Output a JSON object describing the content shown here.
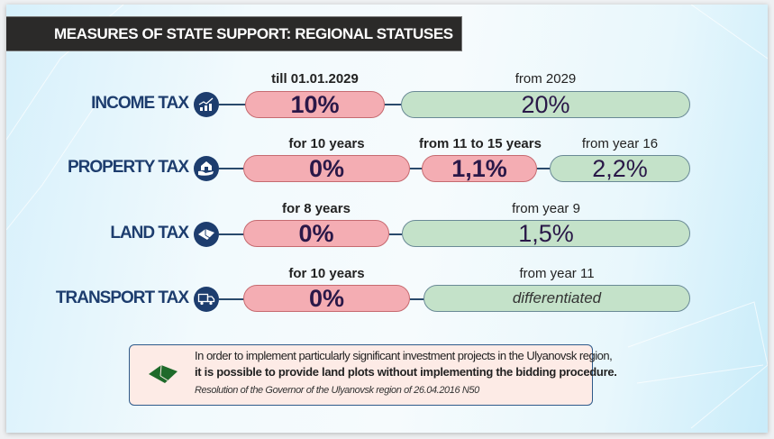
{
  "title": "MEASURES OF STATE SUPPORT: REGIONAL STATUSES",
  "colors": {
    "accent": "#1d3d6e",
    "pink": "#f4adb3",
    "green": "#c4e2c9",
    "title_bg": "#2b2a29",
    "note_bg": "#fdebe6"
  },
  "rows": [
    {
      "label": "INCOME TAX",
      "icon": "income-chart-icon",
      "periods": [
        {
          "caption": "till 01.01.2029",
          "value": "10%"
        },
        {
          "caption": "from 2029",
          "value": "20%"
        }
      ]
    },
    {
      "label": "PROPERTY TAX",
      "icon": "house-hand-icon",
      "periods": [
        {
          "caption": "for 10 years",
          "value": "0%"
        },
        {
          "caption": "from 11 to 15 years",
          "value": "1,1%"
        },
        {
          "caption": "from year 16",
          "value": "2,2%"
        }
      ]
    },
    {
      "label": "LAND TAX",
      "icon": "land-plot-icon",
      "periods": [
        {
          "caption": "for 8 years",
          "value": "0%"
        },
        {
          "caption": "from year 9",
          "value": "1,5%"
        }
      ]
    },
    {
      "label": "TRANSPORT TAX",
      "icon": "truck-icon",
      "periods": [
        {
          "caption": "for 10 years",
          "value": "0%"
        },
        {
          "caption": "from year 11",
          "value": "differentiated"
        }
      ]
    }
  ],
  "note": {
    "line1": "In order to implement particularly significant investment projects in the Ulyanovsk region,",
    "line2": "it is possible to provide land plots without implementing the bidding procedure.",
    "source": "Resolution of the Governor of the Ulyanovsk region of 26.04.2016 N50"
  }
}
